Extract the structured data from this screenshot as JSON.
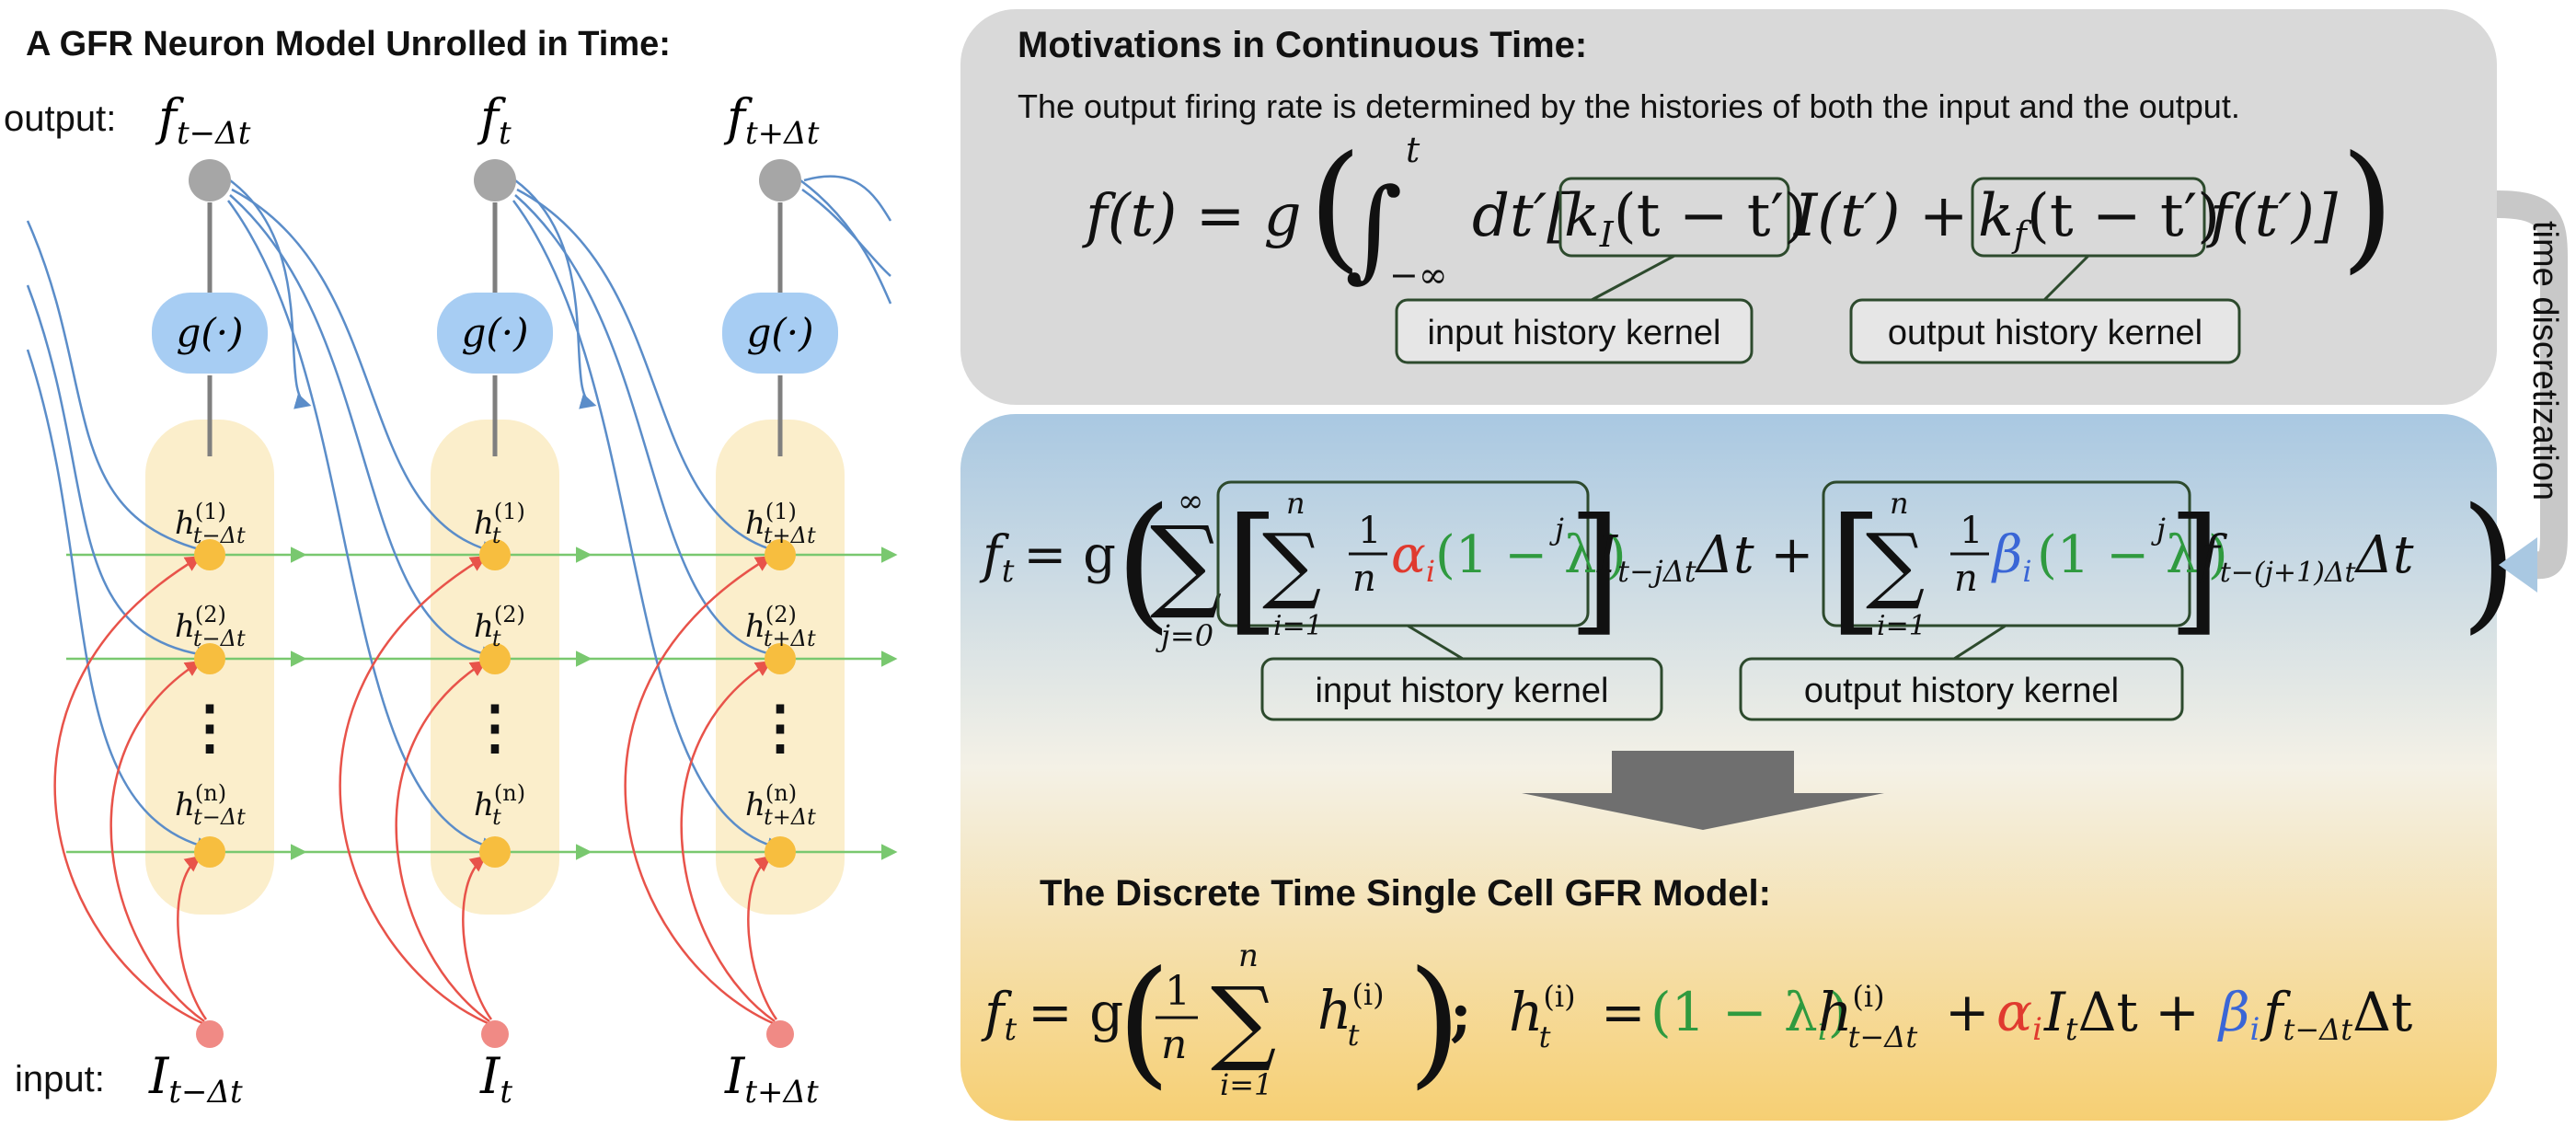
{
  "left_panel": {
    "title": "A GFR Neuron Model Unrolled in Time:",
    "output_label": "output:",
    "input_label": "input:",
    "columns": [
      {
        "out_f": "f",
        "out_sub": "t−Δt",
        "in_I": "I",
        "in_sub": "t−Δt",
        "g_label": "g(·)",
        "h_sub": "t−Δt"
      },
      {
        "out_f": "f",
        "out_sub": "t",
        "in_I": "I",
        "in_sub": "t",
        "g_label": "g(·)",
        "h_sub": "t"
      },
      {
        "out_f": "f",
        "out_sub": "t+Δt",
        "in_I": "I",
        "in_sub": "t+Δt",
        "g_label": "g(·)",
        "h_sub": "t+Δt"
      }
    ],
    "h_letter": "h",
    "h_sups": [
      "(1)",
      "(2)",
      "(n)"
    ],
    "dots": "⋮"
  },
  "top_box": {
    "title": "Motivations in Continuous Time:",
    "text": "The output firing rate is determined by the histories of both the input and the output.",
    "eq": {
      "lhs": "f(t) = g",
      "int_sign": "∫",
      "int_upper": "t",
      "int_lower": "−∞",
      "dt": "dt′[",
      "kI": "k",
      "kI_sub": "I",
      "kI_arg": "(t − t′)",
      "mid": "I(t′) +",
      "kf": "k",
      "kf_sub": "f",
      "kf_arg": "(t − t′)",
      "end": "f(t′)]"
    },
    "label_input": "input history kernel",
    "label_output": "output history kernel"
  },
  "side_label": "time discretization",
  "mid_box": {
    "eq": {
      "lhs_f": "f",
      "lhs_sub": "t",
      "eq_g": "= g",
      "sum": "∑",
      "sum_upper": "∞",
      "sum_lower": "j=0",
      "inner_sum_upper": "n",
      "inner_sum_lower": "i=1",
      "frac_num": "1",
      "frac_den": "n",
      "alpha": "α",
      "beta": "β",
      "i_sub": "i",
      "lam": "(1 − λ",
      "lam_close": ")",
      "pow_j": "j",
      "term1": "I",
      "term1_sub": "t−jΔt",
      "term1_tail": "Δt +",
      "term2": "f",
      "term2_sub": "t−(j+1)Δt",
      "term2_tail": "Δt"
    },
    "label_input": "input history kernel",
    "label_output": "output history kernel"
  },
  "bottom": {
    "title": "The Discrete Time Single Cell GFR Model:",
    "eq": {
      "f": "f",
      "f_sub": "t",
      "eq_g": "= g",
      "frac_num": "1",
      "frac_den": "n",
      "sum": "∑",
      "sum_upper": "n",
      "sum_lower": "i=1",
      "h": "h",
      "h_sup": "(i)",
      "h_sub": "t",
      "semi": ";",
      "h2": "h",
      "h2_sup": "(i)",
      "h2_sub": "t",
      "eq2": "=",
      "green": "(1 − λ",
      "green_sub": "i",
      "green_close": ")",
      "h3": "h",
      "h3_sup": "(i)",
      "h3_sub": "t−Δt",
      "plus": "+",
      "alpha": "α",
      "alpha_sub": "i",
      "it": "I",
      "it_sub": "t",
      "dt": "Δt +",
      "beta": "β",
      "beta_sub": "i",
      "ft": "f",
      "ft_sub": "t−Δt",
      "dt2": "Δt"
    }
  },
  "colors": {
    "gray_box": "#d9d9d9",
    "blue_top": "#a9c8e2",
    "orange_bottom": "#f6d27e",
    "yellow_col": "#fbeecb",
    "g_box": "#a7cdf3",
    "node_gray": "#a6a6a6",
    "node_yellow": "#f7be3f",
    "node_red": "#f08a85",
    "line_blue": "#5b8dc9",
    "line_red": "#e8534a",
    "line_green": "#79c86f",
    "label_border": "#2d4a2d",
    "alpha_red": "#e03a2f",
    "beta_blue": "#3a66d6",
    "lambda_green": "#2f9a3f"
  }
}
